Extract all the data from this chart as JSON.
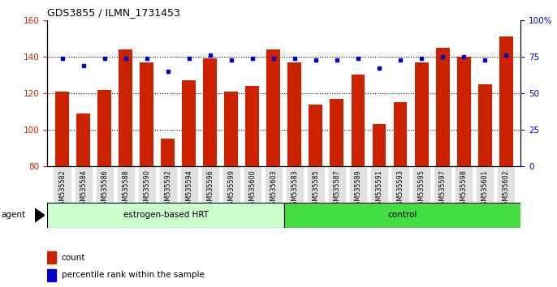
{
  "title": "GDS3855 / ILMN_1731453",
  "samples": [
    "GSM535582",
    "GSM535584",
    "GSM535586",
    "GSM535588",
    "GSM535590",
    "GSM535592",
    "GSM535594",
    "GSM535596",
    "GSM535599",
    "GSM535600",
    "GSM535603",
    "GSM535583",
    "GSM535585",
    "GSM535587",
    "GSM535589",
    "GSM535591",
    "GSM535593",
    "GSM535595",
    "GSM535597",
    "GSM535598",
    "GSM535601",
    "GSM535602"
  ],
  "counts": [
    121,
    109,
    122,
    144,
    137,
    95,
    127,
    139,
    121,
    124,
    144,
    137,
    114,
    117,
    130,
    103,
    115,
    137,
    145,
    140,
    125,
    151
  ],
  "percentiles": [
    74,
    69,
    74,
    74,
    74,
    65,
    74,
    76,
    73,
    74,
    74,
    74,
    73,
    73,
    74,
    67,
    73,
    74,
    75,
    75,
    73,
    76
  ],
  "group1_label": "estrogen-based HRT",
  "group2_label": "control",
  "group1_count": 11,
  "group2_count": 11,
  "ylim_left": [
    80,
    160
  ],
  "ylim_right": [
    0,
    100
  ],
  "yticks_left": [
    80,
    100,
    120,
    140,
    160
  ],
  "yticks_right": [
    0,
    25,
    50,
    75,
    100
  ],
  "ytick_labels_right": [
    "0",
    "25",
    "50",
    "75",
    "100%"
  ],
  "bar_color": "#cc2200",
  "dot_color": "#0000cc",
  "tick_label_color_left": "#cc2200",
  "tick_label_color_right": "#0000cc",
  "group1_bg": "#ccffcc",
  "group2_bg": "#44dd44",
  "agent_label": "agent"
}
